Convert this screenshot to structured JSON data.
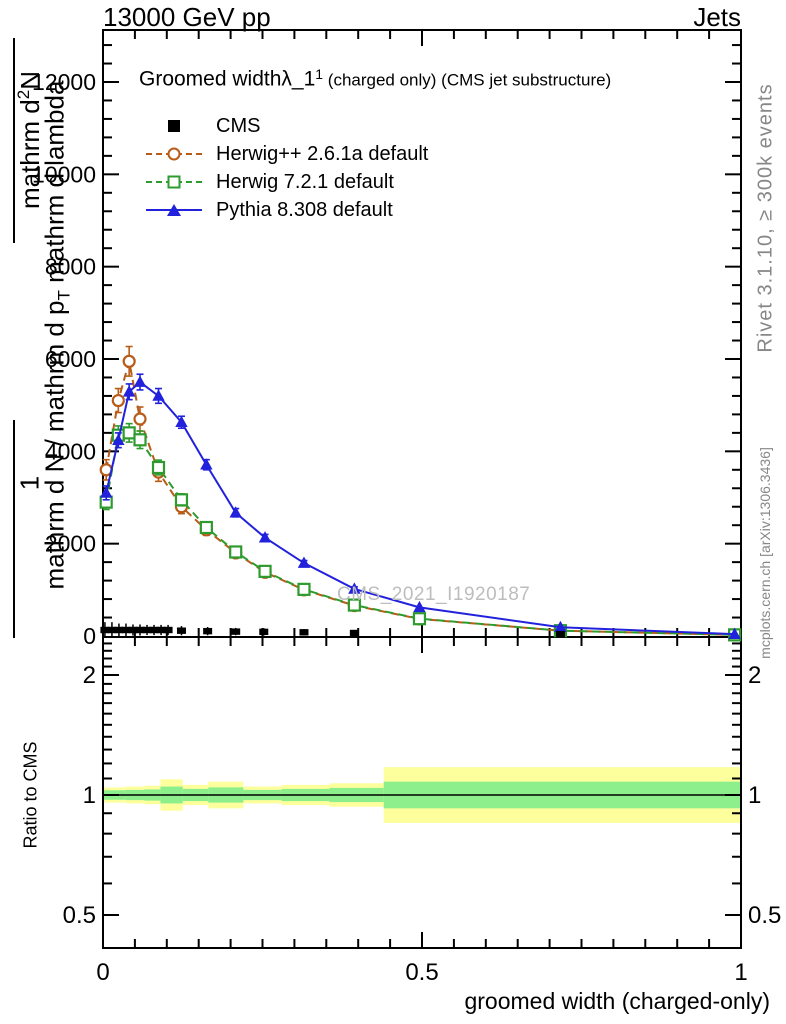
{
  "header": {
    "left": "13000 GeV pp",
    "right": "Jets"
  },
  "side_text_top": "Rivet 3.1.10, ≥ 300k events",
  "side_text_bottom": "mcplots.cern.ch [arXiv:1306.3436]",
  "watermark": "CMS_2021_I1920187",
  "plot_title": {
    "main": "Groomed width",
    "lambda": "λ_1",
    "sup": "1",
    "suffix": " (charged only) (CMS jet substructure)"
  },
  "ylabel": {
    "one": "1",
    "numerator": "mathrm d",
    "numerator_sup": "2",
    "numerator_tail": "N",
    "inner_a": "mathrm d N / mathrm d p",
    "inner_sub": "T",
    "inner_b": " mathrm d lambda"
  },
  "xlabel": "groomed width (charged-only)",
  "ratio_label": "Ratio to CMS",
  "legend": [
    {
      "label": "CMS",
      "marker": "filled-square",
      "color_key": "cms"
    },
    {
      "label": "Herwig++ 2.6.1a default",
      "marker": "open-circle",
      "color_key": "herwigpp",
      "line": "dashed"
    },
    {
      "label": "Herwig 7.2.1 default",
      "marker": "open-square",
      "color_key": "herwig7",
      "line": "dashed"
    },
    {
      "label": "Pythia 8.308 default",
      "marker": "filled-triangle",
      "color_key": "pythia",
      "line": "solid"
    }
  ],
  "colors": {
    "cms": "#000000",
    "herwigpp": "#b85c18",
    "herwig7": "#2e9b2e",
    "pythia": "#2222dd",
    "band_yellow": "#fdff9c",
    "band_green": "#8cef8c",
    "gray_text": "#878787",
    "watermark_gray": "#bdbdbd"
  },
  "axes": {
    "x": {
      "range": [
        0,
        1
      ],
      "tick_values": [
        0,
        0.5,
        1
      ],
      "tick_labels": [
        "0",
        "0.5",
        "1"
      ],
      "minor_step": 0.05,
      "label": "groomed width (charged-only)"
    },
    "y_main": {
      "range": [
        0,
        13100
      ],
      "tick_values": [
        0,
        2000,
        4000,
        6000,
        8000,
        10000,
        12000
      ],
      "tick_labels": [
        "0",
        "2000",
        "4000",
        "6000",
        "8000",
        "10000",
        "12000"
      ],
      "minor_step": 400
    },
    "y_ratio": {
      "range": [
        0.413,
        2.45
      ],
      "scale": "log",
      "tick_values": [
        0.5,
        1,
        2
      ],
      "tick_labels": [
        "0.5",
        "1",
        "2"
      ],
      "minors": [
        0.6,
        0.7,
        0.8,
        0.9,
        1.1,
        1.2,
        1.3,
        1.4,
        1.5,
        1.6,
        1.7,
        1.8,
        1.9,
        2.1,
        2.2,
        2.3,
        2.4
      ],
      "label": "Ratio to CMS"
    }
  },
  "chart_data": {
    "type": "line",
    "title": "Groomed width lambda_1^1 (charged only) (CMS jet substructure)",
    "xlabel": "groomed width (charged-only)",
    "ylabel": "1/N d2N / d p_T d lambda",
    "xlim": [
      0,
      1
    ],
    "ylim": [
      0,
      13100
    ],
    "x": [
      0.005,
      0.024,
      0.041,
      0.058,
      0.087,
      0.123,
      0.162,
      0.208,
      0.254,
      0.315,
      0.394,
      0.496,
      0.717,
      0.99
    ],
    "series": [
      {
        "name": "Herwig++ 2.6.1a default",
        "color_key": "herwigpp",
        "dash": true,
        "marker": "circle",
        "values": [
          3600,
          5100,
          5950,
          4700,
          3550,
          2800,
          2300,
          1800,
          1380,
          1000,
          660,
          370,
          115,
          25
        ],
        "errors": [
          220,
          260,
          320,
          260,
          200,
          150,
          120,
          100,
          80,
          60,
          50,
          40,
          25,
          10
        ]
      },
      {
        "name": "Herwig 7.2.1 default",
        "color_key": "herwig7",
        "dash": true,
        "marker": "square",
        "values": [
          2900,
          4350,
          4400,
          4250,
          3650,
          2950,
          2350,
          1820,
          1400,
          1010,
          670,
          375,
          115,
          25
        ],
        "errors": [
          160,
          200,
          200,
          190,
          160,
          130,
          100,
          85,
          70,
          55,
          45,
          35,
          20,
          10
        ]
      },
      {
        "name": "Pythia 8.308 default",
        "color_key": "pythia",
        "dash": false,
        "marker": "triangle",
        "values": [
          3100,
          4240,
          5290,
          5500,
          5200,
          4630,
          3710,
          2670,
          2130,
          1580,
          1020,
          620,
          190,
          40
        ],
        "errors": [
          150,
          160,
          170,
          170,
          160,
          130,
          110,
          90,
          70,
          55,
          45,
          35,
          20,
          10
        ]
      }
    ],
    "cms": {
      "x": [
        0.003,
        0.014,
        0.025,
        0.036,
        0.047,
        0.058,
        0.069,
        0.08,
        0.091,
        0.102,
        0.123,
        0.164,
        0.208,
        0.252,
        0.315,
        0.394,
        0.717
      ],
      "y": [
        130,
        130,
        130,
        130,
        130,
        130,
        130,
        130,
        130,
        130,
        115,
        105,
        95,
        90,
        80,
        65,
        40
      ],
      "err": [
        170,
        170,
        140,
        140,
        120,
        120,
        110,
        110,
        110,
        110,
        100,
        90,
        80,
        80,
        70,
        60,
        40
      ]
    },
    "ratio": {
      "line_at": 1,
      "bands": {
        "edges": [
          0,
          0.035,
          0.065,
          0.09,
          0.125,
          0.165,
          0.22,
          0.28,
          0.355,
          0.44,
          1.0
        ],
        "yellow": [
          1.045,
          1.05,
          1.055,
          1.095,
          1.06,
          1.08,
          1.05,
          1.06,
          1.07,
          1.175
        ],
        "green": [
          1.028,
          1.03,
          1.033,
          1.05,
          1.036,
          1.045,
          1.03,
          1.036,
          1.042,
          1.08
        ]
      }
    }
  }
}
